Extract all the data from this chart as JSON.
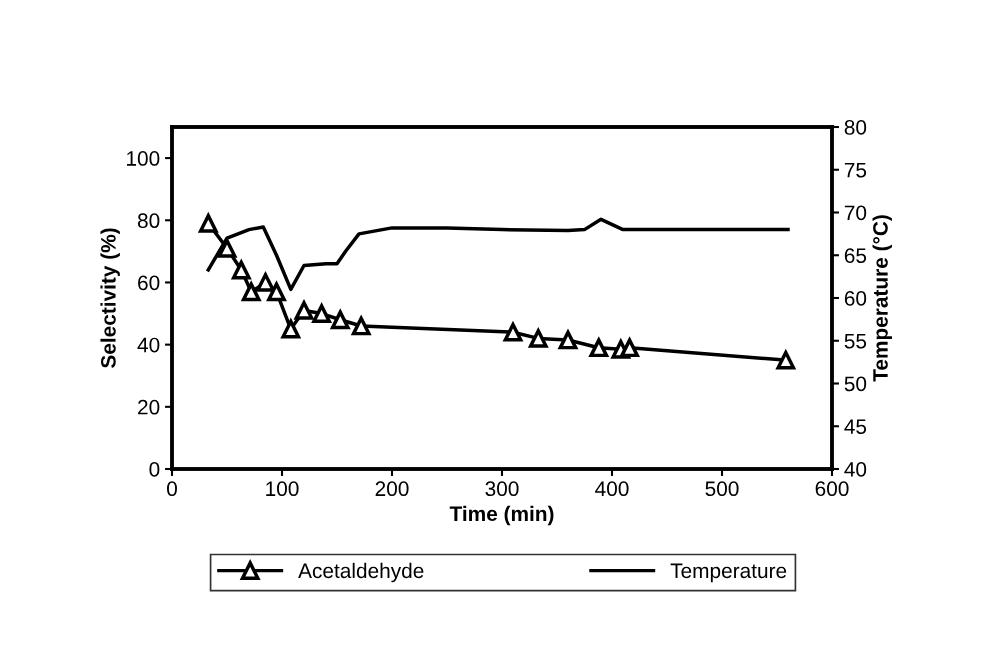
{
  "chart_data": {
    "type": "line",
    "xlabel": "Time (min)",
    "ylabel": "Selectivity (%)",
    "y2label": "Temperature (°C)",
    "xlim": [
      0,
      600
    ],
    "xticks": [
      0,
      100,
      200,
      300,
      400,
      500,
      600
    ],
    "ylim": [
      0,
      110
    ],
    "yticks": [
      0,
      20,
      40,
      60,
      80,
      100
    ],
    "y2lim": [
      40,
      80
    ],
    "y2ticks": [
      40,
      45,
      50,
      55,
      60,
      65,
      70,
      75,
      80
    ],
    "legend": "bottom",
    "grid": false,
    "series": [
      {
        "name": "Acetaldehyde",
        "color": "#000000",
        "marker": "triangle",
        "axis": "y",
        "x": [
          33,
          50,
          63,
          72,
          85,
          95,
          108,
          120,
          136,
          153,
          172,
          310,
          333,
          360,
          388,
          408,
          416,
          558
        ],
        "values": [
          79,
          71,
          64,
          57,
          60,
          57,
          45,
          51,
          50,
          48,
          46,
          44,
          42,
          41.5,
          39,
          38.5,
          39,
          35
        ]
      },
      {
        "name": "Temperature",
        "color": "#000000",
        "marker": "none",
        "axis": "y2",
        "x": [
          33,
          50,
          70,
          83,
          95,
          108,
          120,
          140,
          150,
          158,
          170,
          200,
          250,
          300,
          360,
          375,
          390,
          410,
          560
        ],
        "values": [
          63.3,
          67,
          68,
          68.3,
          65,
          61,
          63.8,
          64,
          64,
          65.5,
          67.5,
          68.2,
          68.2,
          68,
          67.9,
          68,
          69.2,
          68,
          68
        ]
      }
    ]
  }
}
